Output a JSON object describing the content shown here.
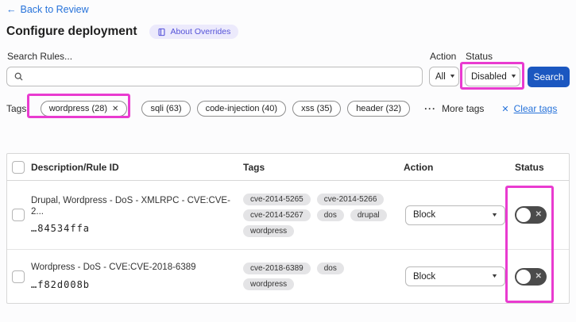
{
  "nav": {
    "back_arrow": "←",
    "back_label": "Back to Review"
  },
  "header": {
    "title": "Configure deployment",
    "about_badge_label": "About Overrides"
  },
  "search": {
    "label": "Search Rules...",
    "value": ""
  },
  "filters": {
    "action_label": "Action",
    "action_value": "All",
    "status_label": "Status",
    "status_value": "Disabled",
    "search_button_label": "Search"
  },
  "tags_bar": {
    "label": "Tags:",
    "active_tag_label": "wordpress (28)",
    "remove_icon": "✕",
    "other_tags": [
      "sqli (63)",
      "code-injection (40)",
      "xss (35)",
      "header (32)"
    ],
    "more_dots": "···",
    "more_label": "More tags",
    "clear_icon": "✕",
    "clear_label": "Clear tags"
  },
  "table": {
    "headers": {
      "description": "Description/Rule ID",
      "tags": "Tags",
      "action": "Action",
      "status": "Status"
    },
    "rows": [
      {
        "description": "Drupal, Wordpress - DoS - XMLRPC - CVE:CVE-2...",
        "rule_id": "…84534ffa",
        "tags": [
          "cve-2014-5265",
          "cve-2014-5266",
          "cve-2014-5267",
          "dos",
          "drupal",
          "wordpress"
        ],
        "action": "Block",
        "status": "off",
        "toggle_icon": "✕"
      },
      {
        "description": "Wordpress - DoS - CVE:CVE-2018-6389",
        "rule_id": "…f82d008b",
        "tags": [
          "cve-2018-6389",
          "dos",
          "wordpress"
        ],
        "action": "Block",
        "status": "off",
        "toggle_icon": "✕"
      }
    ]
  },
  "colors": {
    "link_blue": "#2672da",
    "button_blue": "#1b57c0",
    "badge_bg": "#eceafc",
    "badge_text": "#5553d8",
    "highlight_magenta": "#e93bd0",
    "tag_pill_bg": "#e4e4e6",
    "toggle_off_bg": "#4b4b4b"
  }
}
